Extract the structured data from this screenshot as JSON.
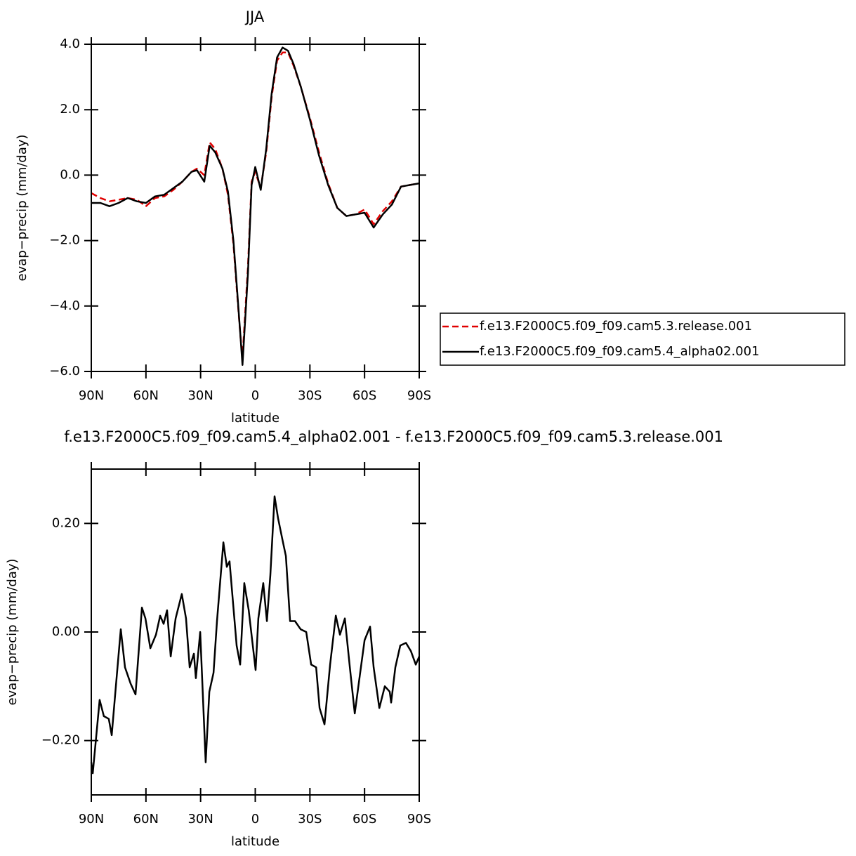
{
  "chart_data": [
    {
      "type": "line",
      "title": "JJA",
      "xlabel": "latitude",
      "ylabel": "evap−precip (mm/day)",
      "xlim": [
        90,
        -90
      ],
      "xticks": [
        {
          "value": 90,
          "label": "90N"
        },
        {
          "value": 60,
          "label": "60N"
        },
        {
          "value": 30,
          "label": "30N"
        },
        0,
        {
          "value": -30,
          "label": "30S"
        },
        {
          "value": -60,
          "label": "60S"
        },
        {
          "value": -90,
          "label": "90S"
        }
      ],
      "ylim": [
        -6,
        4
      ],
      "yticks": [
        {
          "value": 4,
          "label": "4.0"
        },
        {
          "value": 2,
          "label": "2.0"
        },
        {
          "value": 0,
          "label": "0.0"
        },
        {
          "value": -2,
          "label": "−2.0"
        },
        {
          "value": -4,
          "label": "−4.0"
        },
        {
          "value": -6,
          "label": "−6.0"
        }
      ],
      "legend": "outside-right",
      "x": [
        90,
        85,
        80,
        75,
        70,
        65,
        60,
        55,
        50,
        45,
        40,
        35,
        32,
        28,
        25,
        22,
        18,
        15,
        12,
        10,
        8,
        7,
        4,
        2,
        0,
        -3,
        -6,
        -9,
        -12,
        -15,
        -18,
        -21,
        -25,
        -30,
        -35,
        -40,
        -45,
        -50,
        -55,
        -60,
        -65,
        -70,
        -75,
        -80,
        -85,
        -90
      ],
      "series": [
        {
          "name": "f.e13.F2000C5.f09_f09.cam5.3.release.001",
          "color": "#e00000",
          "dash": true,
          "values": [
            -0.55,
            -0.7,
            -0.8,
            -0.75,
            -0.7,
            -0.75,
            -0.95,
            -0.7,
            -0.65,
            -0.45,
            -0.2,
            0.1,
            0.2,
            0.0,
            1.0,
            0.8,
            0.2,
            -0.6,
            -2.1,
            -3.6,
            -5.0,
            -5.6,
            -2.8,
            -0.2,
            0.1,
            -0.4,
            0.7,
            2.4,
            3.5,
            3.75,
            3.75,
            3.35,
            2.7,
            1.75,
            0.7,
            -0.25,
            -1.0,
            -1.25,
            -1.2,
            -1.05,
            -1.5,
            -1.1,
            -0.8,
            -0.35,
            -0.3,
            -0.25
          ]
        },
        {
          "name": "f.e13.F2000C5.f09_f09.cam5.4_alpha02.001",
          "color": "#000000",
          "dash": false,
          "values": [
            -0.85,
            -0.85,
            -0.95,
            -0.85,
            -0.7,
            -0.8,
            -0.85,
            -0.65,
            -0.6,
            -0.4,
            -0.2,
            0.1,
            0.15,
            -0.2,
            0.9,
            0.7,
            0.2,
            -0.5,
            -2.0,
            -3.5,
            -5.0,
            -5.8,
            -3.0,
            -0.3,
            0.25,
            -0.45,
            0.8,
            2.5,
            3.6,
            3.9,
            3.8,
            3.4,
            2.7,
            1.7,
            0.6,
            -0.3,
            -1.0,
            -1.25,
            -1.2,
            -1.15,
            -1.6,
            -1.2,
            -0.9,
            -0.35,
            -0.3,
            -0.25
          ]
        }
      ]
    },
    {
      "type": "line",
      "title": "f.e13.F2000C5.f09_f09.cam5.4_alpha02.001 - f.e13.F2000C5.f09_f09.cam5.3.release.001",
      "xlabel": "latitude",
      "ylabel": "evap−precip (mm/day)",
      "xlim": [
        90,
        -90
      ],
      "xticks": [
        {
          "value": 90,
          "label": "90N"
        },
        {
          "value": 60,
          "label": "60N"
        },
        {
          "value": 30,
          "label": "30N"
        },
        0,
        {
          "value": -30,
          "label": "30S"
        },
        {
          "value": -60,
          "label": "60S"
        },
        {
          "value": -90,
          "label": "90S"
        }
      ],
      "ylim": [
        -0.3,
        0.3
      ],
      "yticks": [
        {
          "value": 0.2,
          "label": "0.20"
        },
        {
          "value": 0,
          "label": "0.00"
        },
        {
          "value": -0.2,
          "label": "−0.20"
        }
      ],
      "x": [
        90,
        89.2,
        85.4,
        83.1,
        80.4,
        78.8,
        76.5,
        73.8,
        71.5,
        68.4,
        65.7,
        62.2,
        60.3,
        57.6,
        54.5,
        52.2,
        50.3,
        48.4,
        46.4,
        43.7,
        40.3,
        38.0,
        36.0,
        33.7,
        32.6,
        30.2,
        27.2,
        25.2,
        22.9,
        21.0,
        17.5,
        15.6,
        14.1,
        12.1,
        10.2,
        8.3,
        6.0,
        3.6,
        1.7,
        -0.2,
        -1.7,
        -4.4,
        -6.4,
        -8.3,
        -10.6,
        -12.5,
        -14.9,
        -16.8,
        -19.1,
        -21.8,
        -24.9,
        -28.0,
        -30.7,
        -33.4,
        -35.3,
        -38.0,
        -41.1,
        -44.2,
        -46.5,
        -49.2,
        -51.9,
        -54.6,
        -57.4,
        -60.0,
        -63.0,
        -65.0,
        -68.1,
        -71.1,
        -73.8,
        -74.6,
        -76.9,
        -79.6,
        -82.7,
        -85.4,
        -88.1,
        -90
      ],
      "series": [
        {
          "color": "#000000",
          "dash": false,
          "values": [
            -0.24,
            -0.26,
            -0.125,
            -0.155,
            -0.16,
            -0.19,
            -0.1,
            0.005,
            -0.065,
            -0.095,
            -0.115,
            0.045,
            0.025,
            -0.03,
            -0.005,
            0.03,
            0.015,
            0.04,
            -0.045,
            0.025,
            0.07,
            0.025,
            -0.065,
            -0.04,
            -0.085,
            0.0,
            -0.24,
            -0.11,
            -0.075,
            0.02,
            0.165,
            0.12,
            0.13,
            0.05,
            -0.025,
            -0.06,
            0.09,
            0.04,
            -0.015,
            -0.07,
            0.025,
            0.09,
            0.02,
            0.105,
            0.25,
            0.21,
            0.17,
            0.14,
            0.02,
            0.02,
            0.005,
            0.0,
            -0.06,
            -0.065,
            -0.14,
            -0.17,
            -0.06,
            0.03,
            -0.005,
            0.025,
            -0.065,
            -0.15,
            -0.08,
            -0.015,
            0.01,
            -0.065,
            -0.14,
            -0.1,
            -0.11,
            -0.13,
            -0.065,
            -0.025,
            -0.02,
            -0.035,
            -0.06,
            -0.045
          ]
        }
      ]
    }
  ]
}
